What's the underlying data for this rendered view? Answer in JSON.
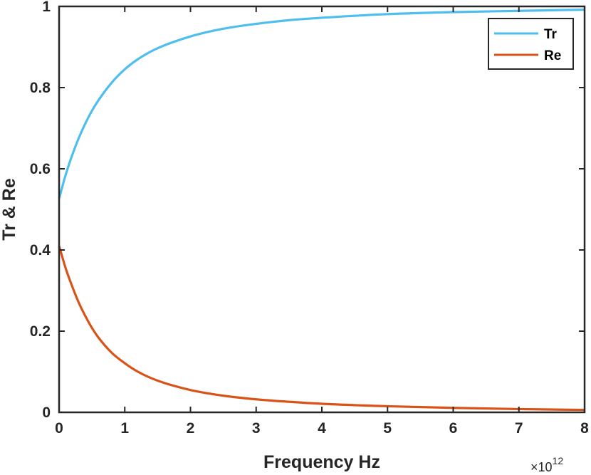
{
  "chart_data": {
    "type": "line",
    "title": "",
    "xlabel": "Frequency Hz",
    "ylabel": "Tr & Re",
    "x_exponent": {
      "base": "×10",
      "power": "12"
    },
    "xlim": [
      0,
      8
    ],
    "ylim": [
      0,
      1
    ],
    "x_ticks": [
      "0",
      "1",
      "2",
      "3",
      "4",
      "5",
      "6",
      "7",
      "8"
    ],
    "y_ticks": [
      "0",
      "0.2",
      "0.4",
      "0.6",
      "0.8",
      "1"
    ],
    "x_tick_values": [
      0,
      1,
      2,
      3,
      4,
      5,
      6,
      7,
      8
    ],
    "y_tick_values": [
      0,
      0.2,
      0.4,
      0.6,
      0.8,
      1
    ],
    "grid": false,
    "legend_position": "top-right",
    "x": [
      0,
      0.1,
      0.2,
      0.3,
      0.4,
      0.5,
      0.6,
      0.8,
      1.0,
      1.2,
      1.5,
      2.0,
      2.5,
      3.0,
      3.5,
      4.0,
      5.0,
      6.0,
      7.0,
      8.0
    ],
    "series": [
      {
        "name": "Tr",
        "color": "#4DBEEE",
        "values": [
          0.527,
          0.585,
          0.634,
          0.676,
          0.712,
          0.743,
          0.769,
          0.812,
          0.845,
          0.87,
          0.897,
          0.926,
          0.945,
          0.957,
          0.966,
          0.972,
          0.981,
          0.986,
          0.989,
          0.992
        ]
      },
      {
        "name": "Re",
        "color": "#D95319",
        "values": [
          0.41,
          0.355,
          0.31,
          0.27,
          0.237,
          0.208,
          0.184,
          0.147,
          0.121,
          0.1,
          0.078,
          0.055,
          0.041,
          0.032,
          0.026,
          0.021,
          0.015,
          0.011,
          0.008,
          0.006
        ]
      }
    ]
  }
}
